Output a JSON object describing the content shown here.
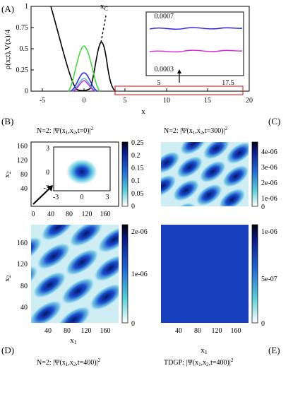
{
  "panels": {
    "A": {
      "letter": "(A)",
      "ylabel": "ρ(x;t),V(x)/4",
      "xlabel": "x",
      "xticks": [
        "-5",
        "0",
        "5",
        "10",
        "15",
        "20"
      ],
      "yticks": [
        "0",
        "0.25",
        "0.5",
        "0.75",
        "1"
      ],
      "xc_label": "x",
      "xc_sub": "C",
      "inset": {
        "yticks": [
          "0.0007",
          "0.0003"
        ],
        "xticks": [
          "5",
          "17.5"
        ]
      }
    },
    "B": {
      "letter": "(B)",
      "title_prefix": "N=2: |Ψ(x",
      "title_full": "N=2: |Ψ(x1,x2,t=0)|²",
      "xticks": [
        "0",
        "40",
        "80",
        "120",
        "160"
      ],
      "yticks": [
        "40",
        "80",
        "120",
        "160"
      ],
      "ylabel": "x2",
      "colorbar": [
        "0.25",
        "0.2",
        "0.15",
        "0.1",
        "0.05",
        "0"
      ],
      "inset": {
        "xticks": [
          "-3",
          "0",
          "3"
        ],
        "yticks": [
          "3",
          "0",
          "-3"
        ]
      }
    },
    "C": {
      "letter": "(C)",
      "title_full": "N=2: |Ψ(x1,x2,t=300)|²",
      "colorbar": [
        "4e-06",
        "3e-06",
        "2e-06",
        "1e-06",
        "0"
      ]
    },
    "D": {
      "letter": "(D)",
      "title_full": "N=2: |Ψ(x1,x2,t=400)|²",
      "xticks": [
        "40",
        "80",
        "120",
        "160"
      ],
      "yticks": [
        "40",
        "80",
        "120",
        "160"
      ],
      "xlabel": "x1",
      "ylabel": "x2",
      "colorbar": [
        "2e-06",
        "1e-06",
        "0"
      ]
    },
    "E": {
      "letter": "(E)",
      "title_full": "TDGP: |Ψ(x1,x2,t=400)|²",
      "xticks": [
        "40",
        "80",
        "120",
        "160"
      ],
      "xlabel": "x1",
      "colorbar": [
        "1e-06",
        "5e-07",
        "0"
      ]
    }
  },
  "colors": {
    "potential": "#000000",
    "green": "#33dd33",
    "blue": "#2222ee",
    "magenta": "#dd22dd",
    "cyan": "#22bbcc",
    "highlight_box": "#dd3333"
  }
}
